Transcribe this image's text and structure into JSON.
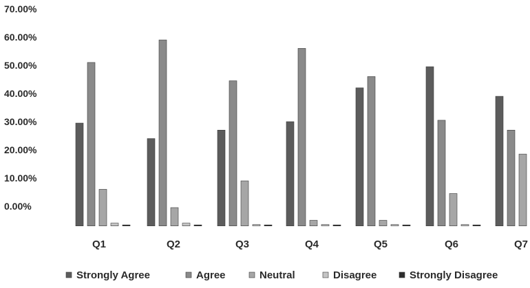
{
  "chart_data": {
    "type": "bar",
    "title": "",
    "xlabel": "",
    "ylabel": "",
    "categories": [
      "Q1",
      "Q2",
      "Q3",
      "Q4",
      "Q5",
      "Q6",
      "Q7"
    ],
    "y_tick_labels": [
      "70.00%",
      "60.00%",
      "50.00%",
      "40.00%",
      "30.00%",
      "20.00%",
      "10.00%",
      "0.00%"
    ],
    "y_ticks": [
      70,
      60,
      50,
      40,
      30,
      20,
      10,
      0
    ],
    "ylim": [
      -7,
      70
    ],
    "grid": false,
    "legend_position": "bottom",
    "series": [
      {
        "name": "Strongly Agree",
        "color": "#5c5c5c",
        "values": [
          29.5,
          24,
          27,
          30,
          42,
          49.5,
          39
        ]
      },
      {
        "name": "Agree",
        "color": "#8a8a8a",
        "values": [
          51,
          59,
          44.5,
          56,
          46,
          30.5,
          27
        ]
      },
      {
        "name": "Neutral",
        "color": "#a6a6a6",
        "values": [
          6,
          -0.5,
          9,
          -5,
          -5,
          4.5,
          18.5
        ]
      },
      {
        "name": "Disagree",
        "color": "#c4c4c4",
        "values": [
          -6,
          -6,
          -6.5,
          -6.5,
          -6.5,
          -6.5,
          -6
        ]
      },
      {
        "name": "Strongly Disagree",
        "color": "#2e2e2e",
        "values": [
          -7,
          -7,
          -7,
          -7,
          -7,
          -7,
          -7
        ]
      }
    ]
  }
}
